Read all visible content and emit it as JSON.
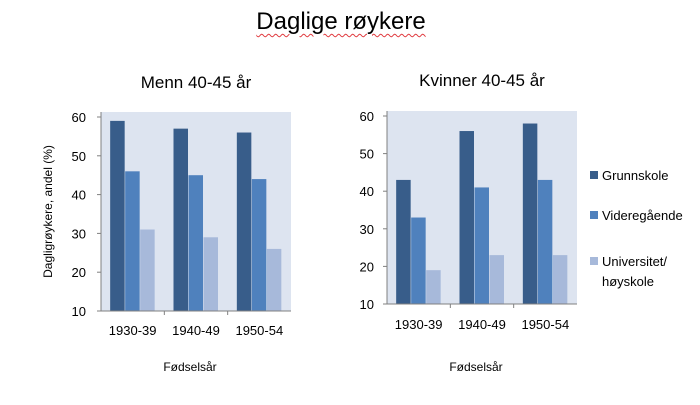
{
  "page_title": "Daglige røykere",
  "colors": {
    "plot_bg": "#dde4f0",
    "axis": "#808080"
  },
  "legend": {
    "placement": "right",
    "items": [
      {
        "lines": [
          "Grunnskole"
        ],
        "color": "#385d8a"
      },
      {
        "lines": [
          "Videregående"
        ],
        "color": "#4f81bd"
      },
      {
        "lines": [
          "Universitet/",
          "høyskole"
        ],
        "color": "#a7b9da"
      }
    ]
  },
  "chart_data": [
    {
      "type": "bar",
      "title": "Menn 40-45 år",
      "xlabel": "Fødselsår",
      "ylabel": "Dagligrøykere, andel (%)",
      "ylim": [
        10,
        60
      ],
      "yticks": [
        10,
        20,
        30,
        40,
        50,
        60
      ],
      "grid": false,
      "categories": [
        "1930-39",
        "1940-49",
        "1950-54"
      ],
      "series": [
        {
          "name": "Grunnskole",
          "values": [
            59,
            57,
            56
          ]
        },
        {
          "name": "Videregående",
          "values": [
            46,
            45,
            44
          ]
        },
        {
          "name": "Universitet/høyskole",
          "values": [
            31,
            29,
            26
          ]
        }
      ]
    },
    {
      "type": "bar",
      "title": "Kvinner 40-45 år",
      "xlabel": "Fødselsår",
      "ylabel": "",
      "ylim": [
        10,
        60
      ],
      "yticks": [
        10,
        20,
        30,
        40,
        50,
        60
      ],
      "grid": false,
      "categories": [
        "1930-39",
        "1940-49",
        "1950-54"
      ],
      "series": [
        {
          "name": "Grunnskole",
          "values": [
            43,
            56,
            58
          ]
        },
        {
          "name": "Videregående",
          "values": [
            33,
            41,
            43
          ]
        },
        {
          "name": "Universitet/høyskole",
          "values": [
            19,
            23,
            23
          ]
        }
      ]
    }
  ]
}
